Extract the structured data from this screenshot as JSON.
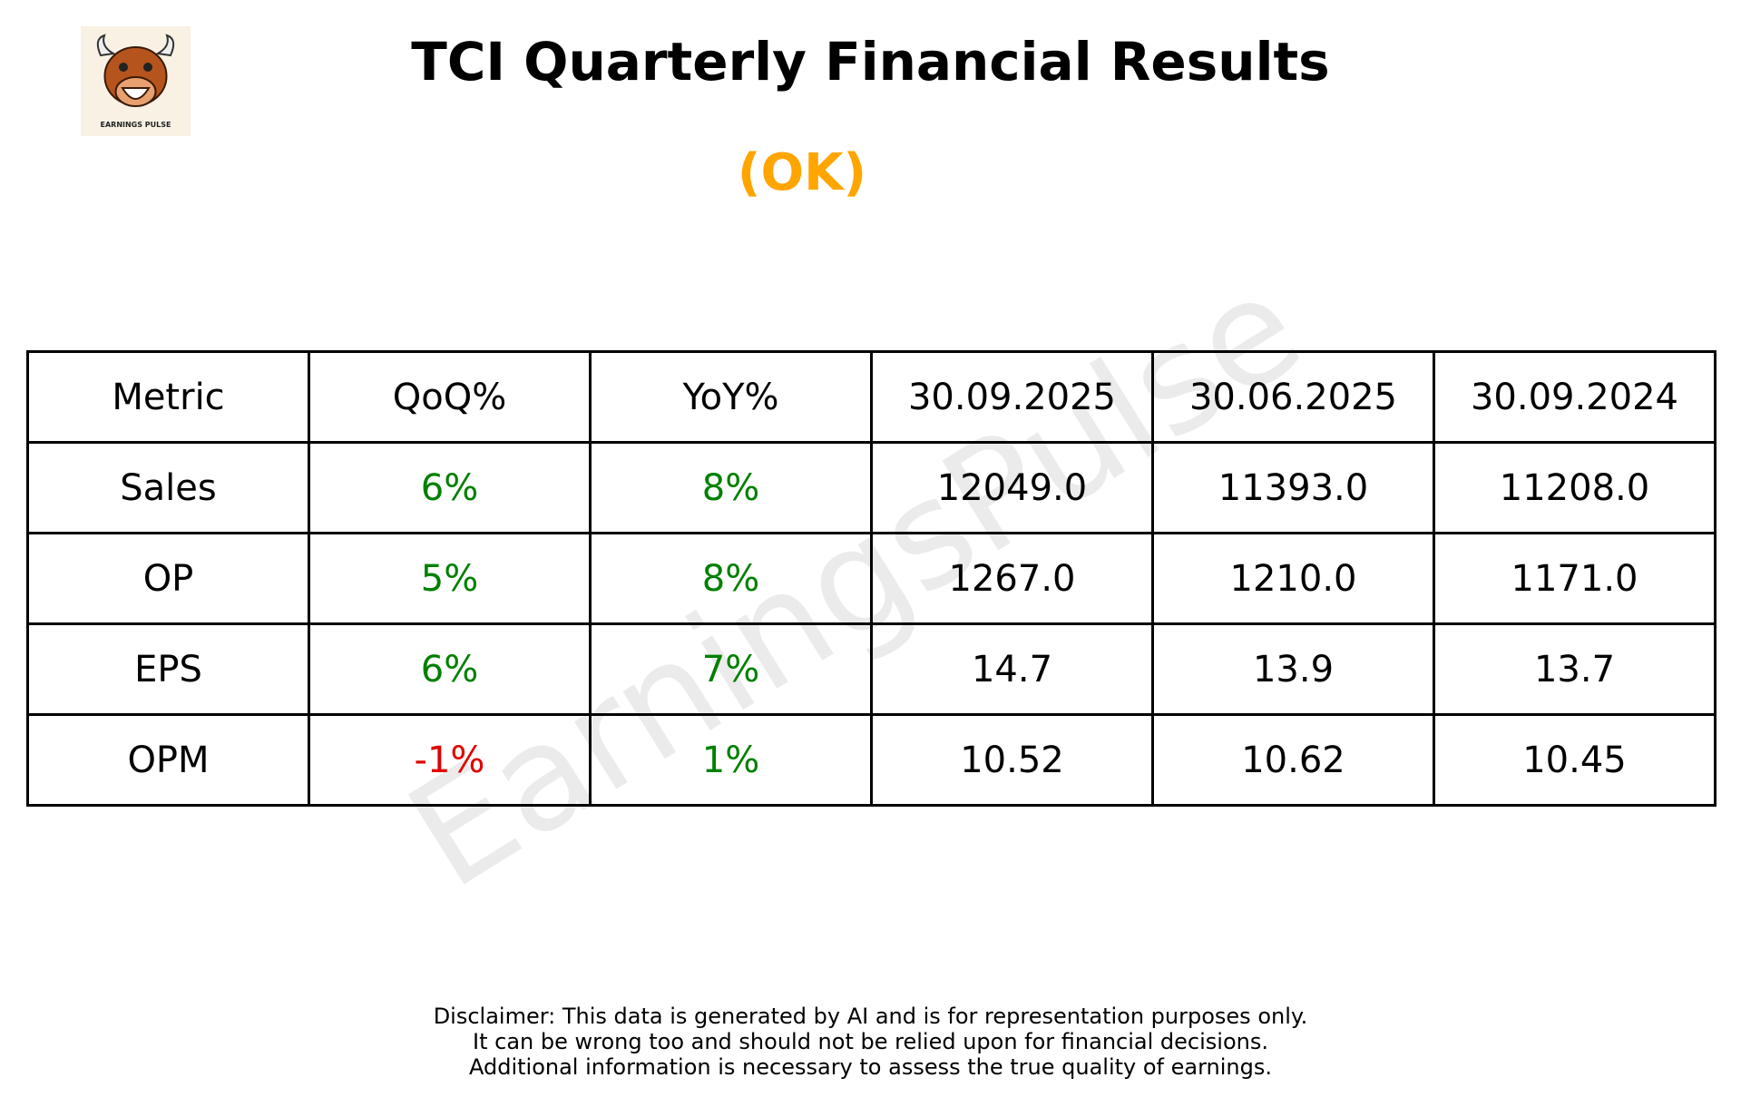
{
  "header": {
    "title": "TCI Quarterly Financial Results",
    "status": "(OK)"
  },
  "logo": {
    "caption": "EARNINGS PULSE"
  },
  "watermark": "EarningsPulse",
  "table": {
    "columns": [
      "Metric",
      "QoQ%",
      "YoY%",
      "30.09.2025",
      "30.06.2025",
      "30.09.2024"
    ],
    "rows": [
      [
        "Sales",
        "6%",
        "8%",
        "12049.0",
        "11393.0",
        "11208.0"
      ],
      [
        "OP",
        "5%",
        "8%",
        "1267.0",
        "1210.0",
        "1171.0"
      ],
      [
        "EPS",
        "6%",
        "7%",
        "14.7",
        "13.9",
        "13.7"
      ],
      [
        "OPM",
        "-1%",
        "1%",
        "10.52",
        "10.62",
        "10.45"
      ]
    ]
  },
  "disclaimer": [
    "Disclaimer: This data is generated by AI and is for representation purposes only.",
    "It can be wrong too and should not be relied upon for financial decisions.",
    "Additional information is necessary to assess the true quality of earnings."
  ]
}
